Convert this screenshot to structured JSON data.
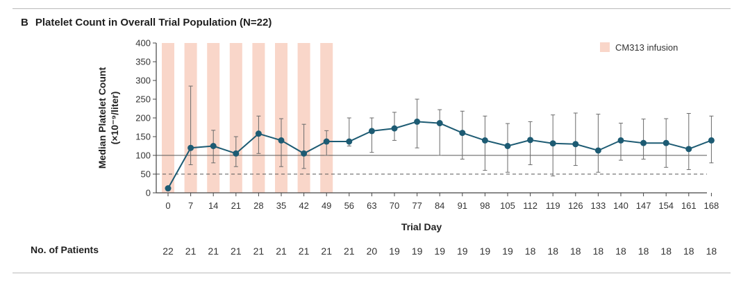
{
  "panel": {
    "letter": "B",
    "title": "Platelet Count in Overall Trial Population (N=22)"
  },
  "patients_label": "No. of Patients",
  "colors": {
    "line": "#1d5b73",
    "marker": "#1d5b73",
    "error_bar": "#6a6a6a",
    "infusion_band": "#f9d6c9",
    "axis": "#444444"
  },
  "chart_data": {
    "type": "line",
    "title": "Platelet Count in Overall Trial Population (N=22)",
    "xlabel": "Trial Day",
    "ylabel_line1": "Median Platelet Count",
    "ylabel_line2": "(×10⁻⁹/liter)",
    "ylim": [
      0,
      400
    ],
    "yticks": [
      0,
      50,
      100,
      150,
      200,
      250,
      300,
      350,
      400
    ],
    "x": [
      0,
      7,
      14,
      21,
      28,
      35,
      42,
      49,
      56,
      63,
      70,
      77,
      84,
      91,
      98,
      105,
      112,
      119,
      126,
      133,
      140,
      147,
      154,
      161,
      168
    ],
    "median": [
      12,
      120,
      125,
      105,
      158,
      140,
      105,
      137,
      137,
      165,
      172,
      190,
      186,
      160,
      140,
      125,
      141,
      132,
      130,
      113,
      140,
      133,
      133,
      117,
      140
    ],
    "lower": [
      8,
      75,
      80,
      70,
      105,
      70,
      65,
      100,
      125,
      108,
      140,
      120,
      100,
      90,
      60,
      55,
      75,
      45,
      73,
      55,
      87,
      90,
      68,
      62,
      80
    ],
    "upper": [
      16,
      285,
      167,
      150,
      205,
      198,
      183,
      166,
      200,
      200,
      215,
      250,
      222,
      218,
      205,
      185,
      190,
      208,
      213,
      210,
      186,
      197,
      198,
      212,
      205
    ],
    "infusion_days": [
      0,
      7,
      14,
      21,
      28,
      35,
      42,
      49
    ],
    "legend": "CM313 infusion",
    "reference_lines": [
      100,
      50
    ],
    "patients": [
      22,
      21,
      21,
      21,
      21,
      21,
      21,
      21,
      21,
      20,
      19,
      19,
      19,
      19,
      19,
      19,
      18,
      18,
      18,
      18,
      18,
      18,
      18,
      18,
      18
    ]
  }
}
